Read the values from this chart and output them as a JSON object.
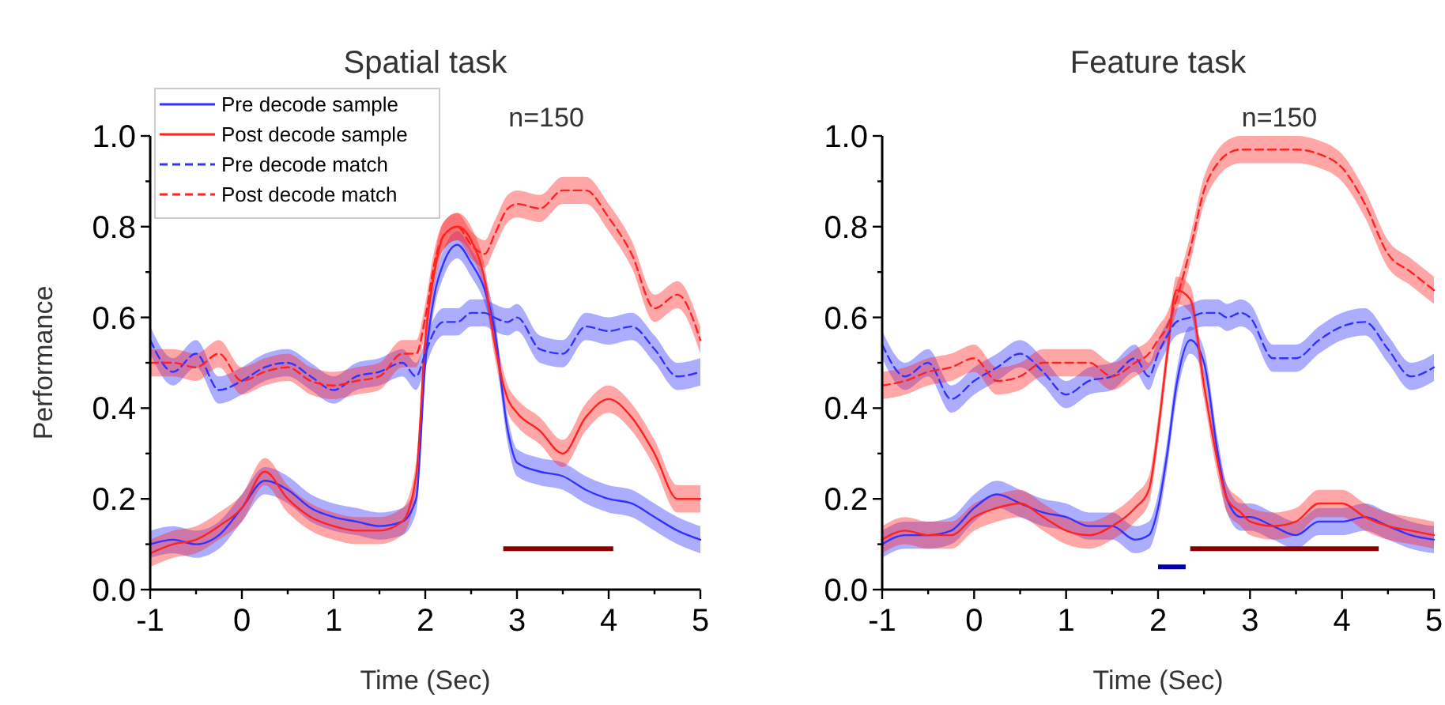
{
  "chart_data": [
    {
      "type": "line",
      "title": "Spatial task",
      "xlabel": "Time (Sec)",
      "ylabel": "Performance",
      "annotations": [
        "n=150"
      ],
      "legend": "top left",
      "grid": false,
      "xlim": [
        -1,
        5
      ],
      "ylim": [
        0,
        1
      ],
      "xticks": [
        -1,
        {
          "value": -0.5,
          "label": null
        },
        0,
        {
          "value": 0.5,
          "label": null
        },
        1,
        {
          "value": 1.5,
          "label": null
        },
        2,
        {
          "value": 2.5,
          "label": null
        },
        3,
        {
          "value": 3.5,
          "label": null
        },
        4,
        {
          "value": 4.5,
          "label": null
        },
        5
      ],
      "yticks": [
        {
          "value": 0,
          "label": "0.0"
        },
        {
          "value": 0.1,
          "label": null
        },
        {
          "value": 0.2,
          "label": "0.2"
        },
        {
          "value": 0.3,
          "label": null
        },
        {
          "value": 0.4,
          "label": "0.4"
        },
        {
          "value": 0.5,
          "label": null
        },
        {
          "value": 0.6,
          "label": "0.6"
        },
        {
          "value": 0.7,
          "label": null
        },
        {
          "value": 0.8,
          "label": "0.8"
        },
        {
          "value": 0.9,
          "label": null
        },
        {
          "value": 1,
          "label": "1.0"
        }
      ],
      "x": [
        -1,
        -0.75,
        -0.5,
        -0.25,
        0,
        0.25,
        0.5,
        0.75,
        1,
        1.25,
        1.5,
        1.75,
        1.9,
        2,
        2.1,
        2.2,
        2.35,
        2.5,
        2.65,
        2.75,
        2.9,
        3,
        3.25,
        3.5,
        3.75,
        4,
        4.25,
        4.5,
        4.75,
        5
      ],
      "series": [
        {
          "name": "Pre decode sample",
          "color": "#3333ff",
          "line_style": "solid",
          "values": [
            0.1,
            0.11,
            0.1,
            0.12,
            0.18,
            0.24,
            0.22,
            0.18,
            0.16,
            0.15,
            0.14,
            0.15,
            0.2,
            0.5,
            0.65,
            0.72,
            0.76,
            0.72,
            0.66,
            0.58,
            0.35,
            0.28,
            0.26,
            0.25,
            0.22,
            0.2,
            0.19,
            0.16,
            0.13,
            0.11
          ],
          "lower": [
            0.07,
            0.08,
            0.07,
            0.09,
            0.15,
            0.21,
            0.19,
            0.15,
            0.13,
            0.12,
            0.11,
            0.12,
            0.17,
            0.47,
            0.62,
            0.69,
            0.73,
            0.69,
            0.63,
            0.55,
            0.32,
            0.25,
            0.23,
            0.22,
            0.19,
            0.17,
            0.16,
            0.13,
            0.1,
            0.08
          ],
          "upper": [
            0.13,
            0.14,
            0.13,
            0.15,
            0.21,
            0.27,
            0.25,
            0.21,
            0.19,
            0.18,
            0.17,
            0.18,
            0.23,
            0.53,
            0.68,
            0.75,
            0.79,
            0.75,
            0.69,
            0.61,
            0.38,
            0.31,
            0.29,
            0.28,
            0.25,
            0.23,
            0.22,
            0.19,
            0.16,
            0.14
          ]
        },
        {
          "name": "Post decode sample",
          "color": "#ff2222",
          "line_style": "solid",
          "values": [
            0.08,
            0.1,
            0.11,
            0.14,
            0.18,
            0.26,
            0.2,
            0.16,
            0.14,
            0.13,
            0.13,
            0.15,
            0.25,
            0.55,
            0.7,
            0.78,
            0.8,
            0.77,
            0.68,
            0.55,
            0.42,
            0.39,
            0.35,
            0.3,
            0.38,
            0.42,
            0.38,
            0.3,
            0.2,
            0.2
          ],
          "lower": [
            0.05,
            0.07,
            0.08,
            0.11,
            0.15,
            0.23,
            0.17,
            0.13,
            0.11,
            0.1,
            0.1,
            0.12,
            0.22,
            0.52,
            0.67,
            0.75,
            0.77,
            0.74,
            0.65,
            0.52,
            0.39,
            0.36,
            0.32,
            0.27,
            0.35,
            0.39,
            0.35,
            0.27,
            0.17,
            0.17
          ],
          "upper": [
            0.11,
            0.13,
            0.14,
            0.17,
            0.21,
            0.29,
            0.23,
            0.19,
            0.17,
            0.16,
            0.16,
            0.18,
            0.28,
            0.58,
            0.73,
            0.81,
            0.83,
            0.8,
            0.71,
            0.58,
            0.45,
            0.42,
            0.38,
            0.33,
            0.41,
            0.45,
            0.41,
            0.33,
            0.23,
            0.23
          ]
        },
        {
          "name": "Pre decode match",
          "color": "#3333ff",
          "line_style": "dashed",
          "values": [
            0.55,
            0.48,
            0.52,
            0.44,
            0.46,
            0.49,
            0.5,
            0.47,
            0.44,
            0.47,
            0.48,
            0.5,
            0.47,
            0.52,
            0.57,
            0.59,
            0.59,
            0.61,
            0.61,
            0.6,
            0.59,
            0.6,
            0.53,
            0.52,
            0.58,
            0.57,
            0.58,
            0.53,
            0.47,
            0.48
          ],
          "lower": [
            0.52,
            0.45,
            0.49,
            0.41,
            0.43,
            0.46,
            0.47,
            0.44,
            0.41,
            0.44,
            0.45,
            0.47,
            0.44,
            0.49,
            0.54,
            0.56,
            0.56,
            0.58,
            0.58,
            0.57,
            0.56,
            0.57,
            0.5,
            0.49,
            0.55,
            0.54,
            0.55,
            0.5,
            0.44,
            0.45
          ],
          "upper": [
            0.58,
            0.51,
            0.55,
            0.47,
            0.49,
            0.52,
            0.53,
            0.5,
            0.47,
            0.5,
            0.51,
            0.53,
            0.5,
            0.55,
            0.6,
            0.62,
            0.62,
            0.64,
            0.64,
            0.63,
            0.62,
            0.63,
            0.56,
            0.55,
            0.61,
            0.6,
            0.61,
            0.56,
            0.5,
            0.51
          ]
        },
        {
          "name": "Post decode match",
          "color": "#ff2222",
          "line_style": "dashed",
          "values": [
            0.5,
            0.5,
            0.49,
            0.52,
            0.46,
            0.48,
            0.49,
            0.46,
            0.45,
            0.46,
            0.47,
            0.52,
            0.52,
            0.6,
            0.72,
            0.78,
            0.8,
            0.76,
            0.74,
            0.78,
            0.84,
            0.85,
            0.84,
            0.88,
            0.88,
            0.82,
            0.74,
            0.62,
            0.65,
            0.55
          ],
          "lower": [
            0.47,
            0.47,
            0.46,
            0.49,
            0.43,
            0.45,
            0.46,
            0.43,
            0.42,
            0.43,
            0.44,
            0.49,
            0.49,
            0.57,
            0.69,
            0.75,
            0.77,
            0.73,
            0.71,
            0.75,
            0.81,
            0.82,
            0.81,
            0.85,
            0.85,
            0.79,
            0.71,
            0.59,
            0.62,
            0.52
          ],
          "upper": [
            0.53,
            0.53,
            0.52,
            0.55,
            0.49,
            0.51,
            0.52,
            0.49,
            0.48,
            0.49,
            0.5,
            0.55,
            0.55,
            0.63,
            0.75,
            0.81,
            0.83,
            0.79,
            0.77,
            0.81,
            0.87,
            0.88,
            0.87,
            0.91,
            0.91,
            0.85,
            0.77,
            0.65,
            0.68,
            0.58
          ]
        },
        {
          "color": "#8b0000",
          "line_style": "solid",
          "x": [
            2.85,
            4.05
          ],
          "values": [
            0.09,
            0.09
          ]
        }
      ]
    },
    {
      "type": "line",
      "title": "Feature task",
      "xlabel": "Time (Sec)",
      "annotations": [
        "n=150"
      ],
      "grid": false,
      "xlim": [
        -1,
        5
      ],
      "ylim": [
        0,
        1
      ],
      "xticks": [
        -1,
        {
          "value": -0.5,
          "label": null
        },
        0,
        {
          "value": 0.5,
          "label": null
        },
        1,
        {
          "value": 1.5,
          "label": null
        },
        2,
        {
          "value": 2.5,
          "label": null
        },
        3,
        {
          "value": 3.5,
          "label": null
        },
        4,
        {
          "value": 4.5,
          "label": null
        },
        5
      ],
      "yticks": [
        {
          "value": 0,
          "label": "0.0"
        },
        {
          "value": 0.1,
          "label": null
        },
        {
          "value": 0.2,
          "label": "0.2"
        },
        {
          "value": 0.3,
          "label": null
        },
        {
          "value": 0.4,
          "label": "0.4"
        },
        {
          "value": 0.5,
          "label": null
        },
        {
          "value": 0.6,
          "label": "0.6"
        },
        {
          "value": 0.7,
          "label": null
        },
        {
          "value": 0.8,
          "label": "0.8"
        },
        {
          "value": 0.9,
          "label": null
        },
        {
          "value": 1,
          "label": "1.0"
        }
      ],
      "x": [
        -1,
        -0.75,
        -0.5,
        -0.25,
        0,
        0.25,
        0.5,
        0.75,
        1,
        1.25,
        1.5,
        1.75,
        1.9,
        2,
        2.1,
        2.2,
        2.35,
        2.5,
        2.65,
        2.75,
        2.9,
        3,
        3.25,
        3.5,
        3.75,
        4,
        4.25,
        4.5,
        4.75,
        5
      ],
      "series": [
        {
          "color": "#3333ff",
          "line_style": "solid",
          "values": [
            0.1,
            0.12,
            0.12,
            0.13,
            0.18,
            0.21,
            0.19,
            0.17,
            0.16,
            0.14,
            0.14,
            0.11,
            0.12,
            0.18,
            0.3,
            0.45,
            0.55,
            0.5,
            0.3,
            0.2,
            0.16,
            0.16,
            0.14,
            0.12,
            0.15,
            0.15,
            0.16,
            0.14,
            0.12,
            0.11
          ],
          "lower": [
            0.07,
            0.09,
            0.09,
            0.1,
            0.15,
            0.18,
            0.16,
            0.14,
            0.13,
            0.11,
            0.11,
            0.08,
            0.09,
            0.15,
            0.27,
            0.42,
            0.52,
            0.47,
            0.27,
            0.17,
            0.13,
            0.13,
            0.11,
            0.09,
            0.12,
            0.12,
            0.13,
            0.11,
            0.09,
            0.08
          ],
          "upper": [
            0.13,
            0.15,
            0.15,
            0.16,
            0.21,
            0.24,
            0.22,
            0.2,
            0.19,
            0.17,
            0.17,
            0.14,
            0.15,
            0.21,
            0.33,
            0.48,
            0.58,
            0.53,
            0.33,
            0.23,
            0.19,
            0.19,
            0.17,
            0.15,
            0.18,
            0.18,
            0.19,
            0.17,
            0.15,
            0.14
          ]
        },
        {
          "color": "#ff2222",
          "line_style": "solid",
          "values": [
            0.11,
            0.13,
            0.12,
            0.12,
            0.16,
            0.18,
            0.19,
            0.16,
            0.13,
            0.12,
            0.14,
            0.18,
            0.22,
            0.35,
            0.52,
            0.66,
            0.64,
            0.45,
            0.28,
            0.2,
            0.17,
            0.15,
            0.14,
            0.15,
            0.19,
            0.19,
            0.16,
            0.14,
            0.13,
            0.12
          ],
          "lower": [
            0.08,
            0.1,
            0.09,
            0.09,
            0.13,
            0.15,
            0.16,
            0.13,
            0.1,
            0.09,
            0.11,
            0.15,
            0.19,
            0.32,
            0.49,
            0.63,
            0.61,
            0.42,
            0.25,
            0.17,
            0.14,
            0.12,
            0.11,
            0.12,
            0.16,
            0.16,
            0.13,
            0.11,
            0.1,
            0.09
          ],
          "upper": [
            0.14,
            0.16,
            0.15,
            0.15,
            0.19,
            0.21,
            0.22,
            0.19,
            0.16,
            0.15,
            0.17,
            0.21,
            0.25,
            0.38,
            0.55,
            0.69,
            0.67,
            0.48,
            0.31,
            0.23,
            0.2,
            0.18,
            0.17,
            0.18,
            0.22,
            0.22,
            0.19,
            0.17,
            0.16,
            0.15
          ]
        },
        {
          "color": "#3333ff",
          "line_style": "dashed",
          "values": [
            0.54,
            0.47,
            0.5,
            0.42,
            0.46,
            0.49,
            0.52,
            0.48,
            0.43,
            0.46,
            0.47,
            0.51,
            0.47,
            0.52,
            0.56,
            0.59,
            0.6,
            0.61,
            0.61,
            0.6,
            0.61,
            0.6,
            0.51,
            0.51,
            0.55,
            0.58,
            0.59,
            0.53,
            0.47,
            0.49
          ],
          "lower": [
            0.51,
            0.44,
            0.47,
            0.39,
            0.43,
            0.46,
            0.49,
            0.45,
            0.4,
            0.43,
            0.44,
            0.48,
            0.44,
            0.49,
            0.53,
            0.56,
            0.57,
            0.58,
            0.58,
            0.57,
            0.58,
            0.57,
            0.48,
            0.48,
            0.52,
            0.55,
            0.56,
            0.5,
            0.44,
            0.46
          ],
          "upper": [
            0.57,
            0.5,
            0.53,
            0.45,
            0.49,
            0.52,
            0.55,
            0.51,
            0.46,
            0.49,
            0.5,
            0.54,
            0.5,
            0.55,
            0.59,
            0.62,
            0.63,
            0.64,
            0.64,
            0.63,
            0.64,
            0.63,
            0.54,
            0.54,
            0.58,
            0.61,
            0.62,
            0.56,
            0.5,
            0.52
          ]
        },
        {
          "color": "#ff2222",
          "line_style": "dashed",
          "values": [
            0.45,
            0.46,
            0.48,
            0.49,
            0.51,
            0.46,
            0.47,
            0.5,
            0.5,
            0.5,
            0.47,
            0.5,
            0.52,
            0.55,
            0.58,
            0.64,
            0.75,
            0.88,
            0.94,
            0.96,
            0.97,
            0.97,
            0.97,
            0.97,
            0.96,
            0.93,
            0.85,
            0.74,
            0.7,
            0.66
          ],
          "lower": [
            0.42,
            0.43,
            0.45,
            0.46,
            0.48,
            0.43,
            0.44,
            0.47,
            0.47,
            0.47,
            0.44,
            0.47,
            0.49,
            0.52,
            0.55,
            0.61,
            0.72,
            0.85,
            0.91,
            0.93,
            0.94,
            0.94,
            0.94,
            0.94,
            0.93,
            0.9,
            0.82,
            0.71,
            0.67,
            0.63
          ],
          "upper": [
            0.48,
            0.49,
            0.51,
            0.52,
            0.54,
            0.49,
            0.5,
            0.53,
            0.53,
            0.53,
            0.5,
            0.53,
            0.55,
            0.58,
            0.61,
            0.67,
            0.78,
            0.91,
            0.97,
            0.99,
            1.0,
            1.0,
            1.0,
            1.0,
            0.99,
            0.96,
            0.88,
            0.77,
            0.73,
            0.69
          ]
        },
        {
          "color": "#0000aa",
          "line_style": "solid",
          "x": [
            2.0,
            2.3
          ],
          "values": [
            0.05,
            0.05
          ]
        },
        {
          "color": "#8b0000",
          "line_style": "solid",
          "x": [
            2.35,
            4.4
          ],
          "values": [
            0.09,
            0.09
          ]
        }
      ]
    }
  ]
}
